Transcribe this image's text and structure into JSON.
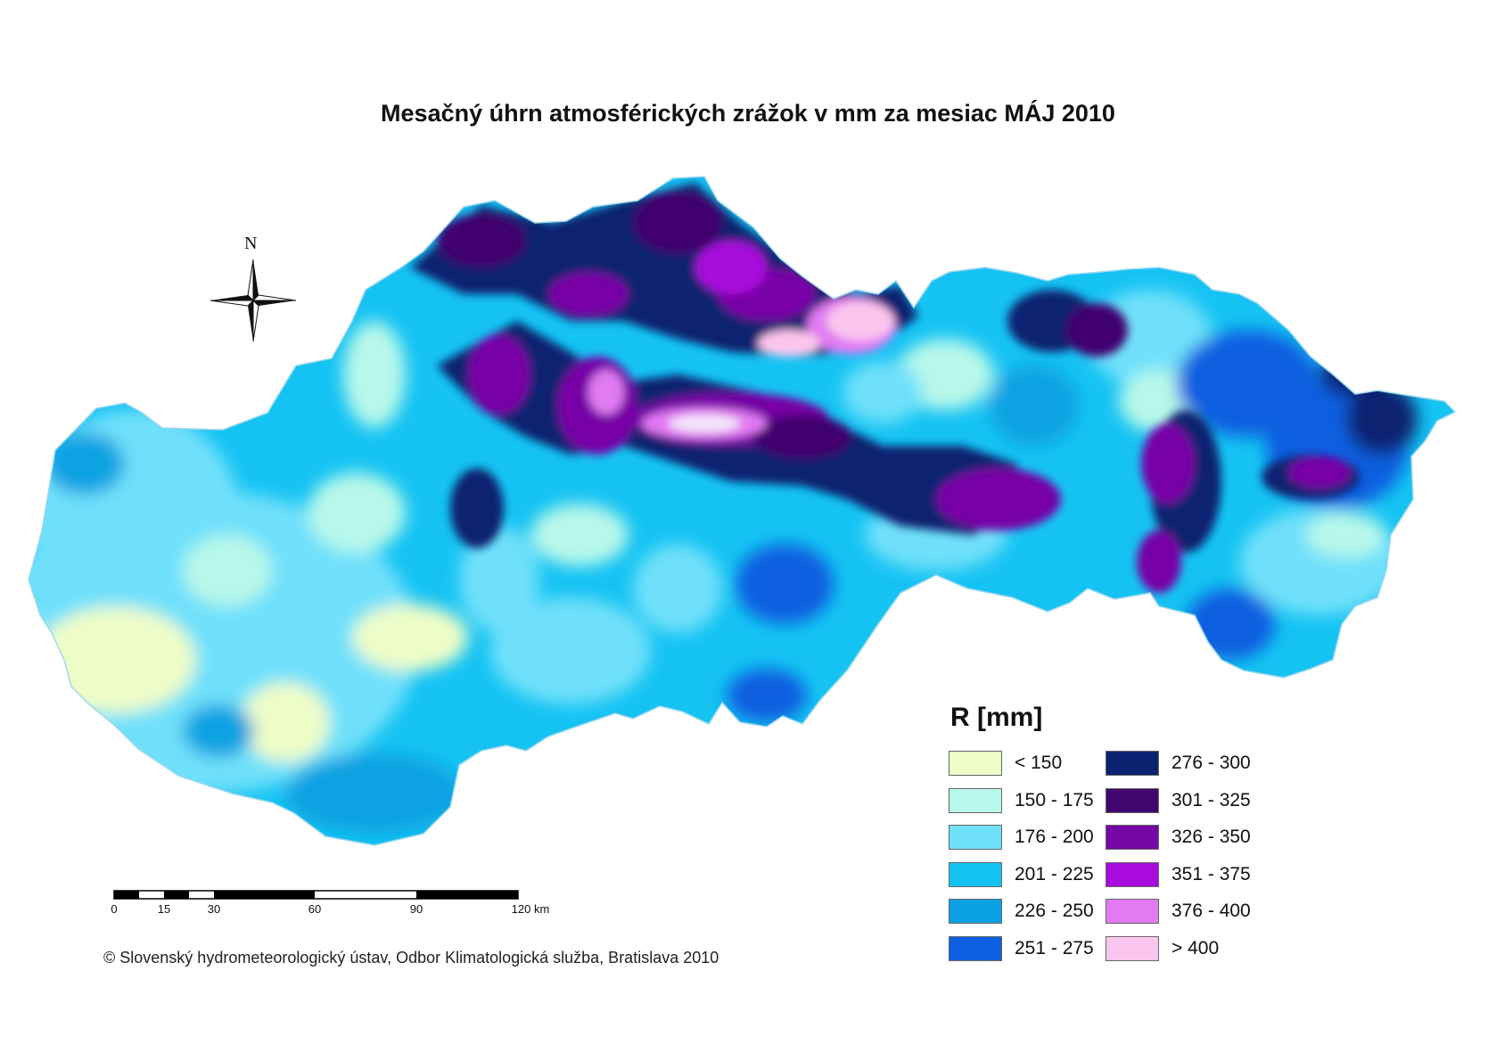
{
  "title": "Mesačný úhrn atmosférických zrážok v mm za mesiac MÁJ 2010",
  "north_label": "N",
  "legend": {
    "title": "R [mm]",
    "items": [
      {
        "label": "< 150",
        "color": "#eefdc8"
      },
      {
        "label": "150 - 175",
        "color": "#b8f8ea"
      },
      {
        "label": "176 - 200",
        "color": "#6fe0fa"
      },
      {
        "label": "201 - 225",
        "color": "#15c3f3"
      },
      {
        "label": "226 - 250",
        "color": "#0aa2e2"
      },
      {
        "label": "251 - 275",
        "color": "#0b5fe0"
      },
      {
        "label": "276 - 300",
        "color": "#0b2270"
      },
      {
        "label": "301 - 325",
        "color": "#40066e"
      },
      {
        "label": "326 - 350",
        "color": "#7706a6"
      },
      {
        "label": "351 - 375",
        "color": "#a80bdc"
      },
      {
        "label": "376 - 400",
        "color": "#e17af3"
      },
      {
        "label": "> 400",
        "color": "#fbc6ee"
      }
    ]
  },
  "scale_bar": {
    "ticks": [
      "0",
      "15",
      "30",
      "60",
      "90",
      "120 km"
    ]
  },
  "copyright": "© Slovenský hydrometeorologický ústav, Odbor Klimatologická služba, Bratislava 2010"
}
